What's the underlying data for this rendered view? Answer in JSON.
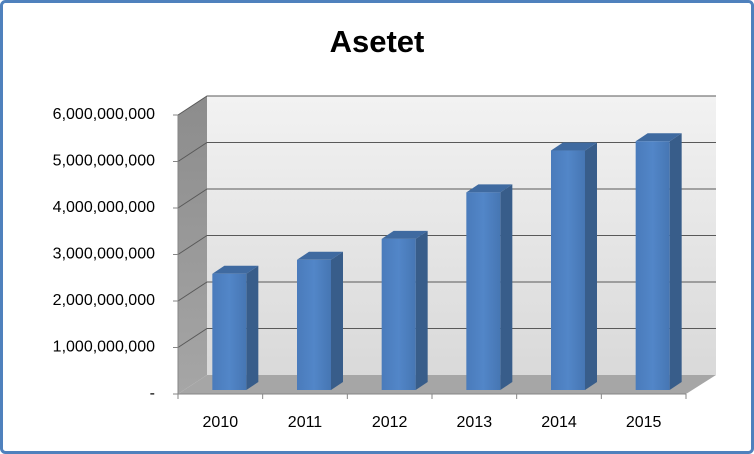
{
  "chart_data": {
    "type": "bar3d",
    "title": "Asetet",
    "categories": [
      "2010",
      "2011",
      "2012",
      "2013",
      "2014",
      "2015"
    ],
    "values": [
      2500000000,
      2800000000,
      3250000000,
      4250000000,
      5150000000,
      5350000000
    ],
    "color": "#4f81bd",
    "ylim": [
      0,
      6000000000
    ],
    "yticks": [
      {
        "value": 0,
        "label": "-"
      },
      {
        "value": 1000000000,
        "label": "1,000,000,000"
      },
      {
        "value": 2000000000,
        "label": "2,000,000,000"
      },
      {
        "value": 3000000000,
        "label": "3,000,000,000"
      },
      {
        "value": 4000000000,
        "label": "4,000,000,000"
      },
      {
        "value": 5000000000,
        "label": "5,000,000,000"
      },
      {
        "value": 6000000000,
        "label": "6,000,000,000"
      }
    ],
    "grid": true
  }
}
